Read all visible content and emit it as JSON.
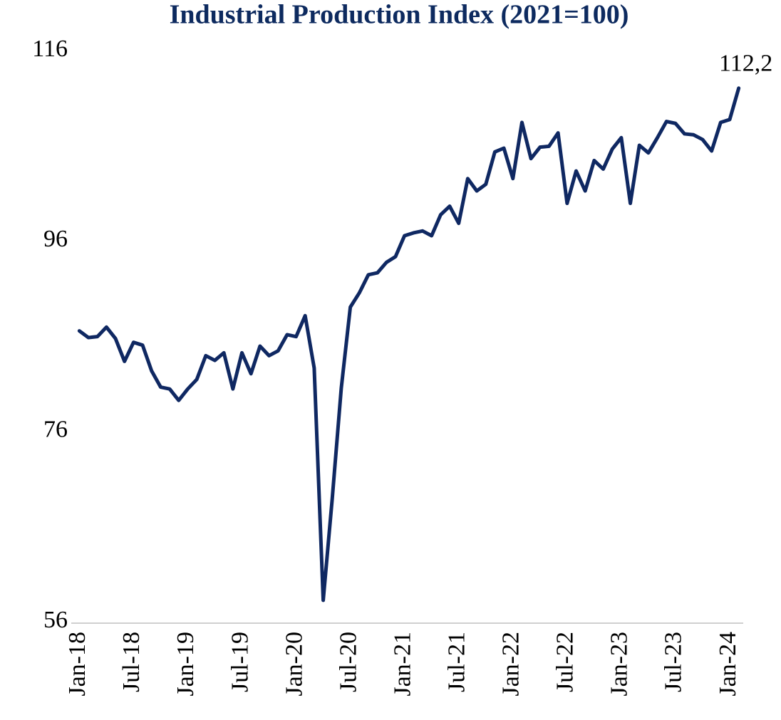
{
  "chart_data": {
    "type": "line",
    "title": "Industrial Production Index (2021=100)",
    "categories": [
      "Jan-18",
      null,
      null,
      null,
      null,
      null,
      "Jul-18",
      null,
      null,
      null,
      null,
      null,
      "Jan-19",
      null,
      null,
      null,
      null,
      null,
      "Jul-19",
      null,
      null,
      null,
      null,
      null,
      "Jan-20",
      null,
      null,
      null,
      null,
      null,
      "Jul-20",
      null,
      null,
      null,
      null,
      null,
      "Jan-21",
      null,
      null,
      null,
      null,
      null,
      "Jul-21",
      null,
      null,
      null,
      null,
      null,
      "Jan-22",
      null,
      null,
      null,
      null,
      null,
      "Jul-22",
      null,
      null,
      null,
      null,
      null,
      "Jan-23",
      null,
      null,
      null,
      null,
      null,
      "Jul-23",
      null,
      null,
      null,
      null,
      null,
      "Jan-24",
      null
    ],
    "values": [
      86.7,
      86.0,
      86.1,
      87.1,
      85.9,
      83.5,
      85.5,
      85.2,
      82.5,
      80.8,
      80.6,
      79.4,
      80.6,
      81.6,
      84.1,
      83.6,
      84.4,
      80.6,
      84.4,
      82.2,
      85.1,
      84.1,
      84.6,
      86.3,
      86.1,
      88.3,
      82.8,
      58.4,
      69.1,
      80.7,
      89.2,
      90.7,
      92.6,
      92.8,
      93.9,
      94.5,
      96.7,
      97.0,
      97.2,
      96.7,
      98.9,
      99.8,
      98.0,
      102.7,
      101.4,
      102.1,
      105.5,
      105.9,
      102.7,
      108.6,
      104.8,
      106.0,
      106.1,
      107.5,
      100.1,
      103.5,
      101.4,
      104.6,
      103.7,
      105.8,
      107.0,
      100.1,
      106.2,
      105.4,
      107.0,
      108.7,
      108.5,
      107.4,
      107.3,
      106.8,
      105.6,
      108.6,
      108.9,
      112.2
    ],
    "value_labels": [
      null,
      null,
      null,
      null,
      null,
      null,
      null,
      null,
      null,
      null,
      null,
      null,
      null,
      null,
      null,
      null,
      null,
      null,
      null,
      null,
      null,
      null,
      null,
      null,
      null,
      null,
      null,
      null,
      null,
      null,
      null,
      null,
      null,
      null,
      null,
      null,
      null,
      null,
      null,
      null,
      null,
      null,
      null,
      null,
      null,
      null,
      null,
      null,
      null,
      null,
      null,
      null,
      null,
      null,
      null,
      null,
      null,
      null,
      null,
      null,
      null,
      null,
      null,
      null,
      null,
      null,
      null,
      null,
      null,
      null,
      null,
      null,
      null,
      "112,2"
    ],
    "color": "#0f2862",
    "ylim": [
      56,
      116
    ],
    "yticks": [
      56,
      76,
      96,
      116
    ],
    "grid": false
  }
}
